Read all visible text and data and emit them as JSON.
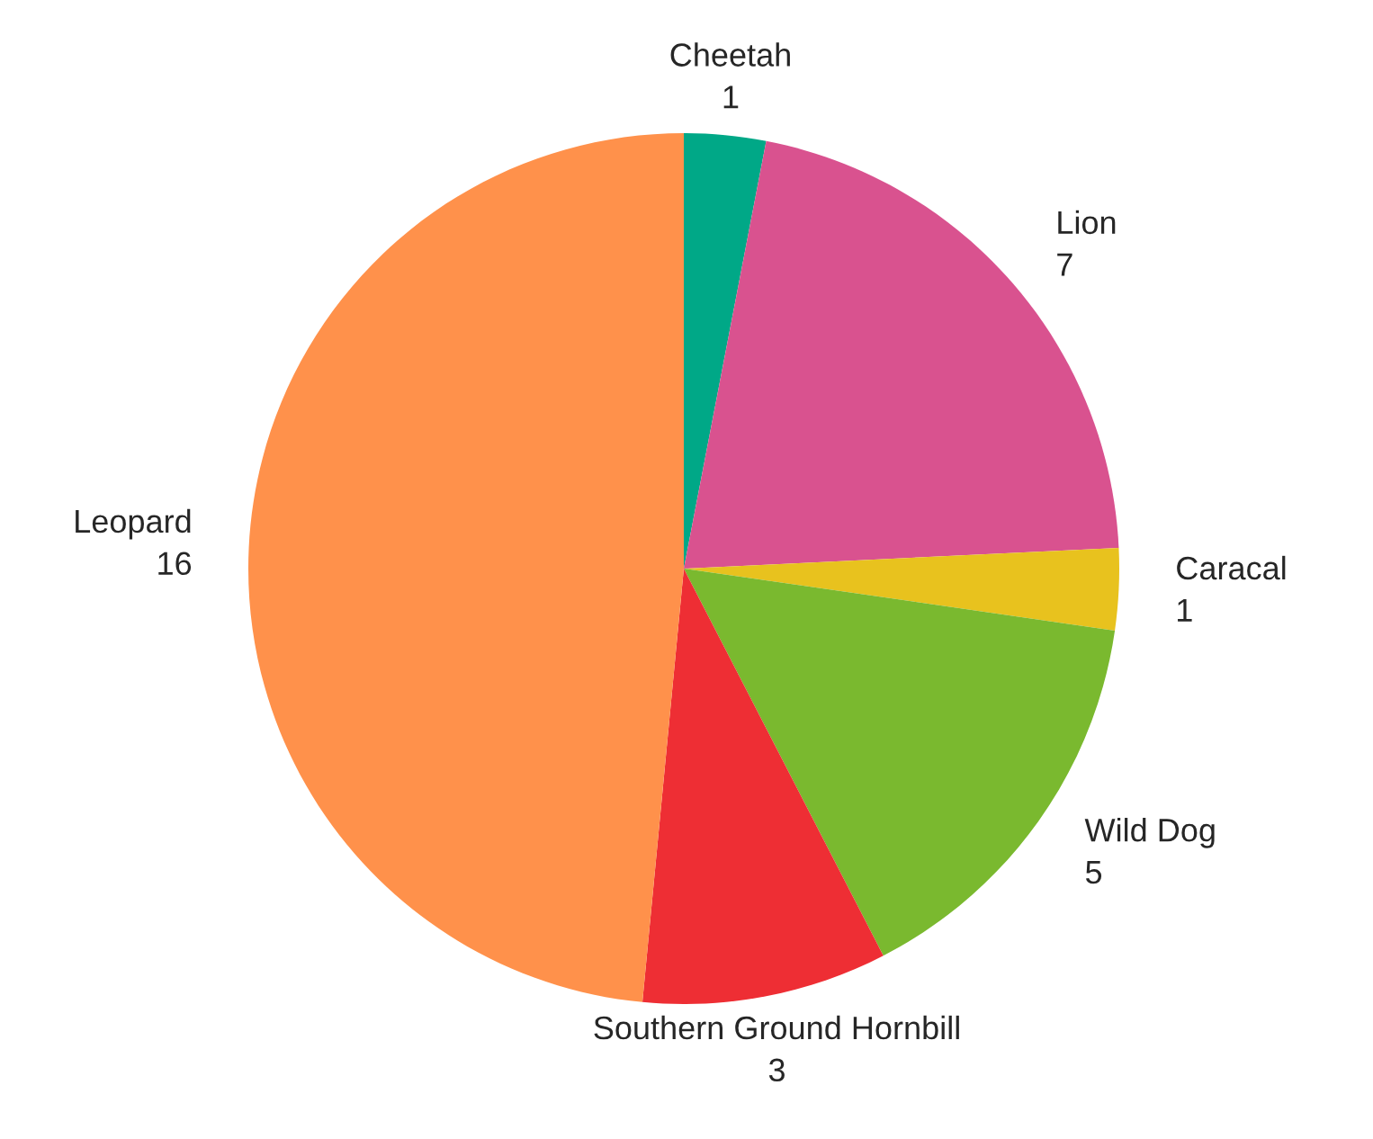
{
  "chart_data": {
    "type": "pie",
    "categories": [
      "Cheetah",
      "Lion",
      "Caracal",
      "Wild Dog",
      "Southern Ground Hornbill",
      "Leopard"
    ],
    "values": [
      1,
      7,
      1,
      5,
      3,
      16
    ],
    "colors": [
      "#00a887",
      "#d9528f",
      "#e8c21e",
      "#7ab92f",
      "#ee2e34",
      "#ff914b"
    ],
    "data_labels": true
  }
}
